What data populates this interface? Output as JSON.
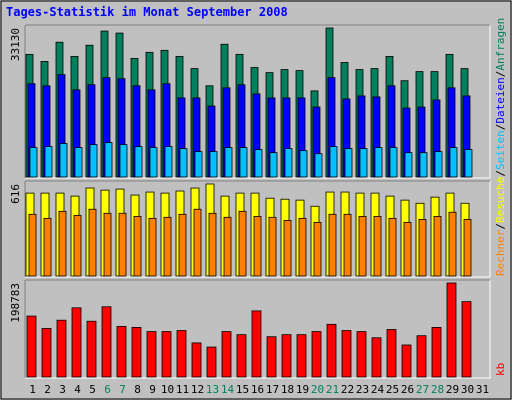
{
  "title": "Tages-Statistik im Monat September 2008",
  "legend_separator": "/",
  "chart_data": [
    {
      "type": "bar",
      "ylim": [
        0,
        33130
      ],
      "yticks": [
        33130
      ],
      "series": [
        {
          "name": "Anfragen",
          "color": "#00805c",
          "values": [
            27270,
            25690,
            29970,
            26820,
            29300,
            32450,
            32000,
            26370,
            27720,
            28170,
            26820,
            24110,
            20280,
            29520,
            27270,
            24340,
            23210,
            23890,
            23660,
            19150,
            33130,
            25470,
            23890,
            24110,
            26820,
            21410,
            23440,
            23440,
            27270,
            24110,
            null
          ]
        },
        {
          "name": "Dateien",
          "color": "#0000ff",
          "values": [
            20740,
            20280,
            22760,
            19380,
            20510,
            22090,
            21860,
            20280,
            19380,
            20740,
            17580,
            17580,
            15780,
            19830,
            20510,
            18480,
            17580,
            17580,
            17580,
            15550,
            22090,
            17360,
            18030,
            17810,
            20280,
            15330,
            15550,
            17130,
            19830,
            18030,
            null
          ]
        },
        {
          "name": "Seiten",
          "color": "#00c0ff",
          "values": [
            6540,
            6760,
            7440,
            6540,
            7210,
            7660,
            7210,
            6760,
            6540,
            6760,
            6310,
            5640,
            5640,
            6540,
            6540,
            6090,
            5410,
            6310,
            5860,
            5180,
            6760,
            6310,
            6310,
            6540,
            6540,
            5410,
            5410,
            5640,
            6540,
            6090,
            null
          ]
        }
      ]
    },
    {
      "type": "bar",
      "ylim": [
        0,
        616
      ],
      "yticks": [
        616
      ],
      "series": [
        {
          "name": "Besuche",
          "color": "#ffff00",
          "values": [
            555,
            555,
            555,
            535,
            589,
            575,
            582,
            542,
            562,
            555,
            569,
            589,
            616,
            535,
            555,
            555,
            521,
            514,
            508,
            467,
            562,
            562,
            555,
            555,
            535,
            508,
            487,
            528,
            555,
            487,
            null
          ]
        },
        {
          "name": "Rechner",
          "color": "#ff8000",
          "values": [
            413,
            386,
            433,
            406,
            447,
            420,
            420,
            399,
            386,
            393,
            413,
            447,
            420,
            393,
            433,
            399,
            393,
            372,
            386,
            359,
            413,
            413,
            399,
            399,
            386,
            359,
            379,
            399,
            427,
            379,
            null
          ]
        }
      ]
    },
    {
      "type": "bar",
      "ylim": [
        0,
        198783
      ],
      "yticks": [
        198783
      ],
      "categories": [
        "1",
        "2",
        "3",
        "4",
        "5",
        "6",
        "7",
        "8",
        "9",
        "10",
        "11",
        "12",
        "13",
        "14",
        "15",
        "16",
        "17",
        "18",
        "19",
        "20",
        "21",
        "22",
        "23",
        "24",
        "25",
        "26",
        "27",
        "28",
        "29",
        "30",
        "31"
      ],
      "highlight": {
        "indices": [
          5,
          6,
          12,
          13,
          19,
          20,
          26,
          27
        ],
        "color": "#00805c"
      },
      "series": [
        {
          "name": "kb",
          "color": "#ff0000",
          "values": [
            128860,
            102650,
            120120,
            146330,
            117940,
            148510,
            107020,
            104830,
            96100,
            96100,
            98280,
            72070,
            63340,
            96100,
            89540,
            139780,
            85180,
            89540,
            89540,
            96100,
            111380,
            98280,
            96100,
            82990,
            100460,
            67700,
            87360,
            104830,
            198783,
            159430,
            null
          ]
        }
      ]
    }
  ]
}
